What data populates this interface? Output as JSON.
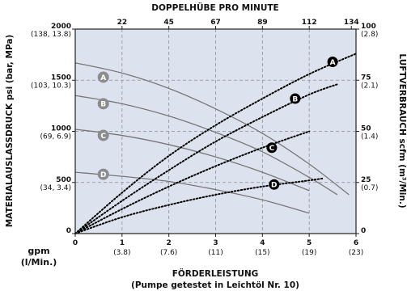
{
  "chart_data": {
    "type": "line",
    "title": "DOPPELHÜBE PRO MINUTE",
    "xlabel": "FÖRDERLEISTUNG",
    "xlabel_note": "(Pumpe getestet in Leichtöl Nr. 10)",
    "x_unit_label": "gpm",
    "x_unit_label_2": "(l/Min.)",
    "ylabel_left": "MATERIALAUSLASSDRUCK psi (bar, MPa)",
    "ylabel_right": "LUFTVERBRAUCH scfm (m³/Min.)",
    "xlim": [
      0,
      6
    ],
    "ylim_left": [
      0,
      2000
    ],
    "ylim_right": [
      0,
      100
    ],
    "grid": true,
    "x_ticks": [
      {
        "value": 0,
        "label": "0",
        "sub": ""
      },
      {
        "value": 1,
        "label": "1",
        "sub": "(3.8)"
      },
      {
        "value": 2,
        "label": "2",
        "sub": "(7.6)"
      },
      {
        "value": 3,
        "label": "3",
        "sub": "(11)"
      },
      {
        "value": 4,
        "label": "4",
        "sub": "(15)"
      },
      {
        "value": 5,
        "label": "5",
        "sub": "(19)"
      },
      {
        "value": 6,
        "label": "6",
        "sub": "(23)"
      }
    ],
    "top_ticks": [
      {
        "value": 1,
        "label": "22"
      },
      {
        "value": 2,
        "label": "45"
      },
      {
        "value": 3,
        "label": "67"
      },
      {
        "value": 4,
        "label": "89"
      },
      {
        "value": 5,
        "label": "112"
      },
      {
        "value": 5.9,
        "label": "134"
      }
    ],
    "y_left_ticks": [
      {
        "value": 0,
        "label": "0",
        "sub": ""
      },
      {
        "value": 500,
        "label": "500",
        "sub": "(34, 3.4)"
      },
      {
        "value": 1000,
        "label": "1000",
        "sub": "(69, 6.9)"
      },
      {
        "value": 1500,
        "label": "1500",
        "sub": "(103, 10.3)"
      },
      {
        "value": 2000,
        "label": "2000",
        "sub": "(138, 13.8)"
      }
    ],
    "y_right_ticks": [
      {
        "value": 0,
        "label": "0",
        "sub": ""
      },
      {
        "value": 25,
        "label": "25",
        "sub": "(0.7)"
      },
      {
        "value": 50,
        "label": "50",
        "sub": "(1.4)"
      },
      {
        "value": 75,
        "label": "75",
        "sub": "(2.1)"
      },
      {
        "value": 100,
        "label": "100",
        "sub": "(2.8)"
      }
    ],
    "pressure_series": [
      {
        "name": "A",
        "x": [
          0,
          1,
          2,
          3,
          4,
          5,
          5.85
        ],
        "y": [
          1670,
          1570,
          1420,
          1220,
          980,
          680,
          380
        ]
      },
      {
        "name": "B",
        "x": [
          0,
          1,
          2,
          3,
          4,
          5,
          5.6
        ],
        "y": [
          1350,
          1270,
          1150,
          990,
          800,
          550,
          380
        ]
      },
      {
        "name": "C",
        "x": [
          0,
          1,
          2,
          3,
          4,
          5
        ],
        "y": [
          1020,
          960,
          870,
          750,
          600,
          420
        ]
      },
      {
        "name": "D",
        "x": [
          0,
          1,
          2,
          3,
          4,
          5
        ],
        "y": [
          600,
          560,
          510,
          430,
          330,
          200
        ]
      }
    ],
    "air_series": [
      {
        "name": "A",
        "x": [
          0,
          1,
          2,
          3,
          4,
          5,
          6
        ],
        "y": [
          0,
          20,
          38,
          53,
          66,
          78,
          88
        ]
      },
      {
        "name": "B",
        "x": [
          0,
          1,
          2,
          3,
          4,
          5,
          5.6
        ],
        "y": [
          0,
          16,
          31,
          45,
          57,
          68,
          73
        ]
      },
      {
        "name": "C",
        "x": [
          0,
          1,
          2,
          3,
          4,
          5
        ],
        "y": [
          0,
          12,
          23,
          33,
          42,
          50
        ]
      },
      {
        "name": "D",
        "x": [
          0,
          1,
          2,
          3,
          4,
          5,
          5.3
        ],
        "y": [
          0,
          8,
          14,
          19,
          23,
          26,
          27
        ]
      }
    ],
    "pressure_label_positions": [
      {
        "name": "A",
        "x": 0.6,
        "y": 1530
      },
      {
        "name": "B",
        "x": 0.6,
        "y": 1270
      },
      {
        "name": "C",
        "x": 0.6,
        "y": 960
      },
      {
        "name": "D",
        "x": 0.6,
        "y": 580
      }
    ],
    "air_label_positions": [
      {
        "name": "A",
        "x": 5.5,
        "y": 84
      },
      {
        "name": "B",
        "x": 4.7,
        "y": 66
      },
      {
        "name": "C",
        "x": 4.2,
        "y": 42
      },
      {
        "name": "D",
        "x": 4.25,
        "y": 24
      }
    ]
  }
}
